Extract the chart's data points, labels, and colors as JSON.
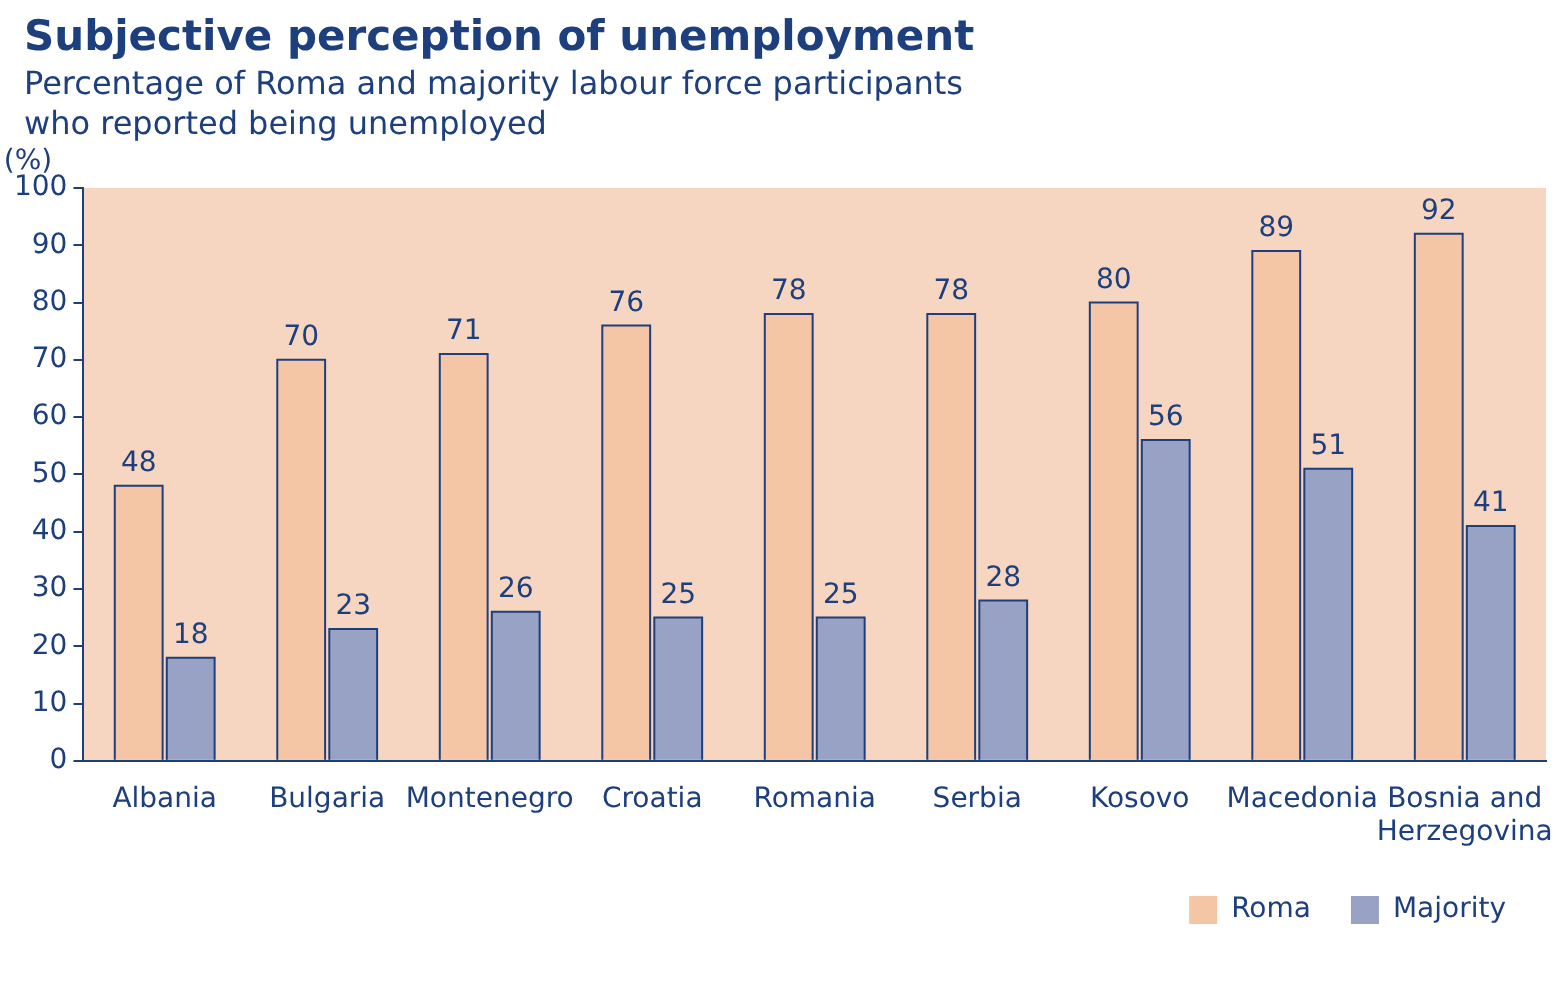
{
  "chart_data": {
    "type": "bar",
    "title": "Subjective perception of unemployment",
    "subtitle": "Percentage of Roma and majority labour force participants who reported being unemployed",
    "ylabel": "(%)",
    "categories": [
      "Albania",
      "Bulgaria",
      "Montenegro",
      "Croatia",
      "Romania",
      "Serbia",
      "Kosovo",
      "Macedonia",
      "Bosnia and Herzegovina"
    ],
    "series": [
      {
        "name": "Roma",
        "color": "#f5c6a5",
        "values": [
          48,
          70,
          71,
          76,
          78,
          78,
          80,
          89,
          92
        ]
      },
      {
        "name": "Majority",
        "color": "#97a2c5",
        "values": [
          18,
          23,
          26,
          25,
          25,
          28,
          56,
          51,
          41
        ]
      }
    ],
    "ylim": [
      0,
      100
    ],
    "yticks": [
      0,
      10,
      20,
      30,
      40,
      50,
      60,
      70,
      80,
      90,
      100
    ],
    "grid": false,
    "legend": "bottom right",
    "data_labels": true
  }
}
